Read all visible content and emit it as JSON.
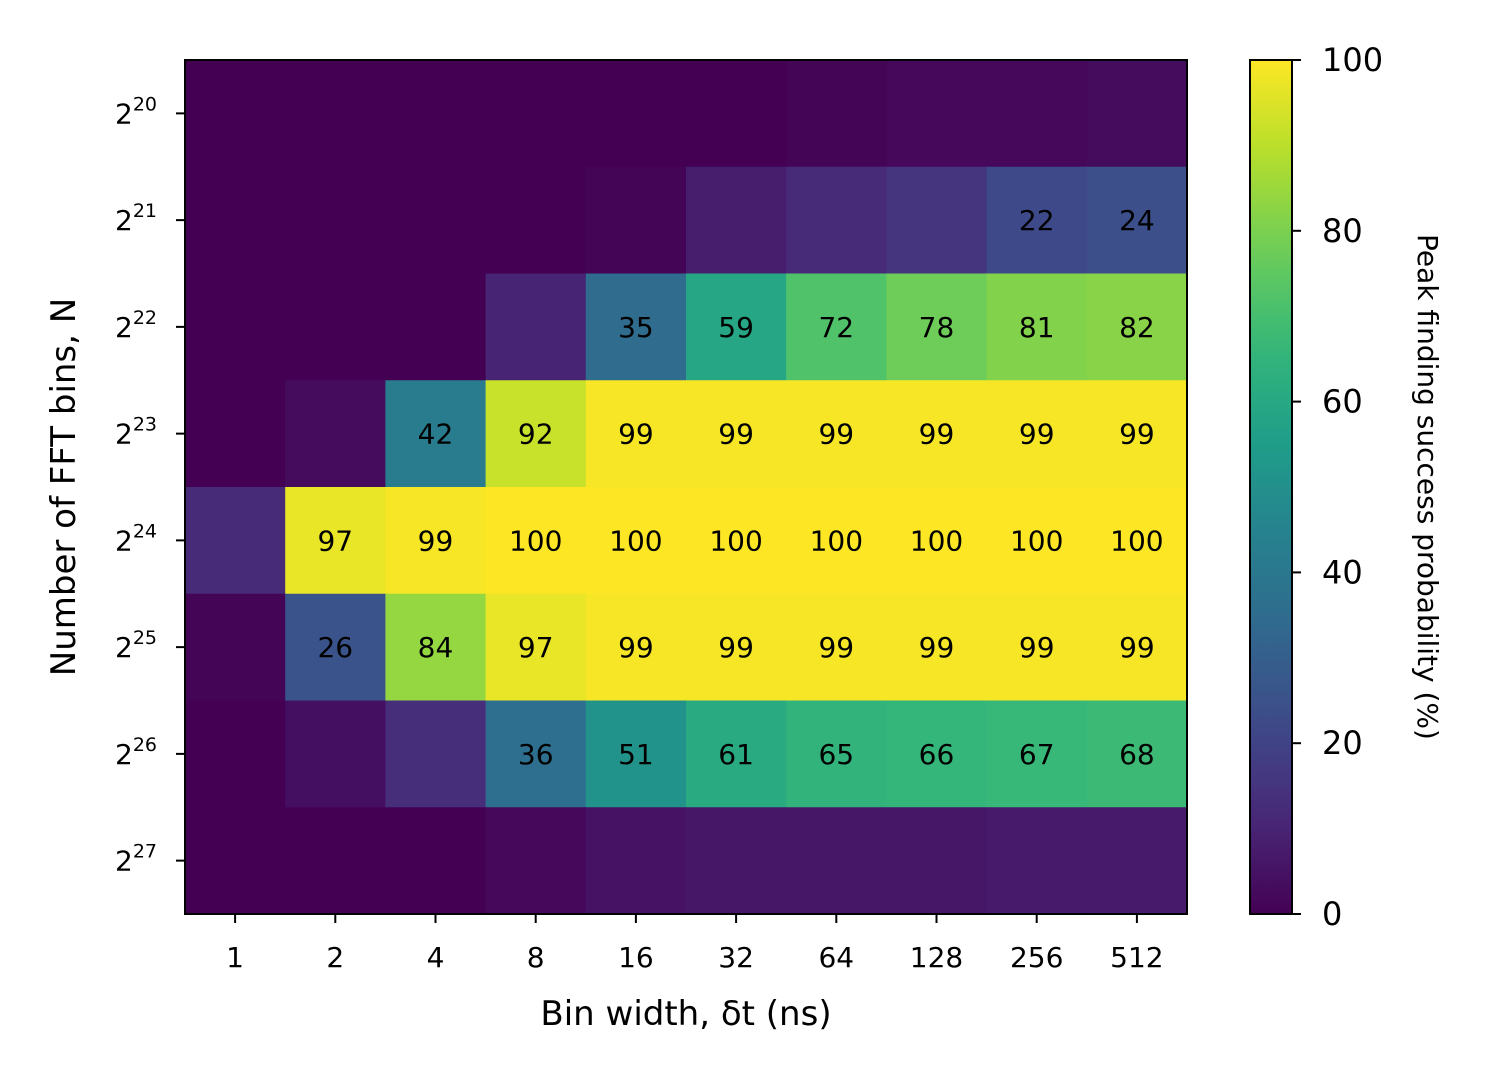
{
  "chart_data": {
    "type": "heatmap",
    "xlabel": "Bin width, δt (ns)",
    "ylabel": "Number of FFT bins, N",
    "x_categories": [
      "1",
      "2",
      "4",
      "8",
      "16",
      "32",
      "64",
      "128",
      "256",
      "512"
    ],
    "y_categories": [
      {
        "base": "2",
        "exp": "20"
      },
      {
        "base": "2",
        "exp": "21"
      },
      {
        "base": "2",
        "exp": "22"
      },
      {
        "base": "2",
        "exp": "23"
      },
      {
        "base": "2",
        "exp": "24"
      },
      {
        "base": "2",
        "exp": "25"
      },
      {
        "base": "2",
        "exp": "26"
      },
      {
        "base": "2",
        "exp": "27"
      }
    ],
    "values": [
      [
        0,
        0,
        0,
        0,
        0,
        0,
        1,
        2,
        2,
        3
      ],
      [
        0,
        0,
        0,
        0,
        1,
        8,
        12,
        15,
        22,
        24
      ],
      [
        0,
        0,
        0,
        10,
        35,
        59,
        72,
        78,
        81,
        82
      ],
      [
        0,
        3,
        42,
        92,
        99,
        99,
        99,
        99,
        99,
        99
      ],
      [
        12,
        97,
        99,
        100,
        100,
        100,
        100,
        100,
        100,
        100
      ],
      [
        1,
        26,
        84,
        97,
        99,
        99,
        99,
        99,
        99,
        99
      ],
      [
        0,
        4,
        13,
        36,
        51,
        61,
        65,
        66,
        67,
        68
      ],
      [
        0,
        0,
        0,
        2,
        5,
        6,
        6,
        6,
        7,
        7
      ]
    ],
    "annotation_threshold": 20,
    "colormap": "viridis",
    "vmin": 0,
    "vmax": 100,
    "colorbar": {
      "label": "Peak finding success probability (%)",
      "ticks": [
        "0",
        "20",
        "40",
        "60",
        "80",
        "100"
      ]
    }
  }
}
